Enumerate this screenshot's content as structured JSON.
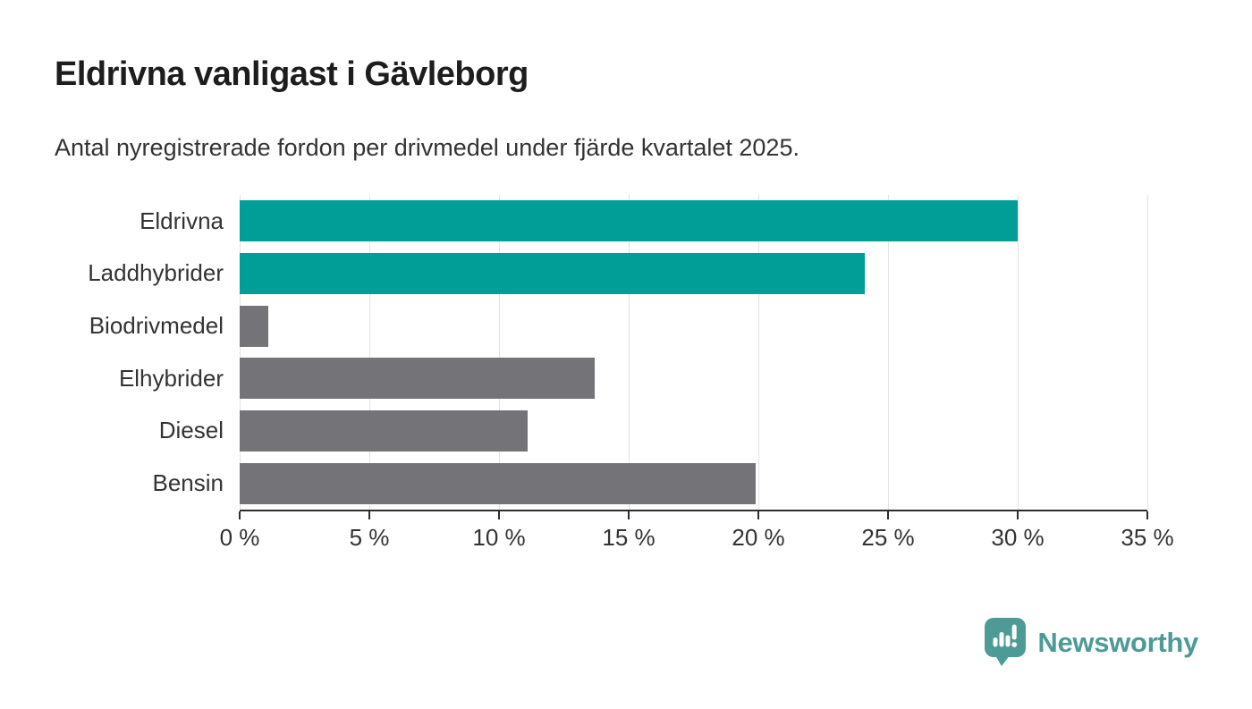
{
  "header": {
    "title": "Eldrivna vanligast i Gävleborg",
    "subtitle": "Antal nyregistrerade fordon per drivmedel under fjärde kvartalet 2025."
  },
  "chart_data": {
    "type": "bar",
    "orientation": "horizontal",
    "title": "Eldrivna vanligast i Gävleborg",
    "subtitle": "Antal nyregistrerade fordon per drivmedel under fjärde kvartalet 2025.",
    "categories": [
      "Eldrivna",
      "Laddhybrider",
      "Biodrivmedel",
      "Elhybrider",
      "Diesel",
      "Bensin"
    ],
    "values": [
      30.0,
      24.1,
      1.1,
      13.7,
      11.1,
      19.9
    ],
    "unit": "%",
    "xlabel": "",
    "ylabel": "",
    "xlim": [
      0,
      35
    ],
    "x_ticks": [
      0,
      5,
      10,
      15,
      20,
      25,
      30,
      35
    ],
    "x_tick_suffix": " %",
    "grid": true,
    "colors": {
      "highlight": "#009E96",
      "default": "#747478"
    },
    "bar_color_roles": [
      "highlight",
      "highlight",
      "default",
      "default",
      "default",
      "default"
    ]
  },
  "footer": {
    "brand": "Newsworthy",
    "brand_color": "#4D9B96"
  },
  "icons": {
    "logo": "newsworthy-speech-bubble-bar-chart-icon"
  }
}
